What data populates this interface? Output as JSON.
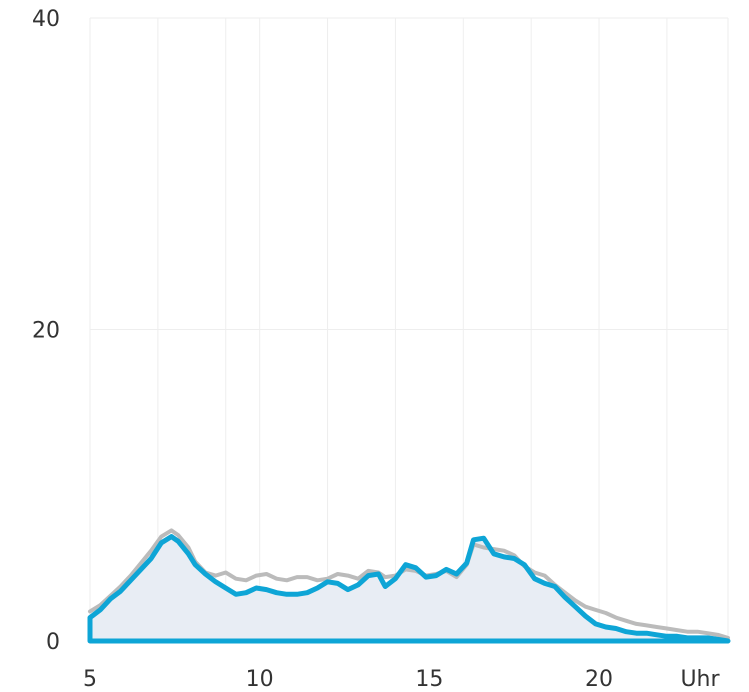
{
  "chart_data": {
    "type": "area",
    "x_unit_label": "Uhr",
    "xlim": [
      5,
      23.8
    ],
    "ylim": [
      0,
      40
    ],
    "x_ticks": [
      5,
      10,
      15,
      20
    ],
    "y_ticks": [
      0,
      20,
      40
    ],
    "grid": true,
    "x_grid": [
      5,
      7,
      9,
      10,
      12,
      14,
      16,
      18,
      20,
      22
    ],
    "series": [
      {
        "color": "#0ea5d6",
        "filled": true,
        "fill_color": "#e8edf4",
        "x": [
          5.0,
          5.3,
          5.6,
          5.9,
          6.2,
          6.5,
          6.8,
          7.1,
          7.4,
          7.6,
          7.9,
          8.1,
          8.4,
          8.7,
          9.0,
          9.3,
          9.6,
          9.9,
          10.2,
          10.5,
          10.8,
          11.1,
          11.4,
          11.7,
          12.0,
          12.3,
          12.6,
          12.9,
          13.2,
          13.5,
          13.7,
          14.0,
          14.3,
          14.6,
          14.9,
          15.2,
          15.5,
          15.8,
          16.1,
          16.3,
          16.6,
          16.9,
          17.2,
          17.5,
          17.8,
          18.1,
          18.4,
          18.7,
          19.0,
          19.3,
          19.6,
          19.9,
          20.2,
          20.5,
          20.8,
          21.1,
          21.4,
          21.7,
          22.0,
          22.3,
          22.6,
          22.9,
          23.2,
          23.5,
          23.8
        ],
        "y": [
          1.5,
          2.0,
          2.7,
          3.2,
          3.9,
          4.6,
          5.3,
          6.3,
          6.7,
          6.4,
          5.6,
          4.9,
          4.3,
          3.8,
          3.4,
          3.0,
          3.1,
          3.4,
          3.3,
          3.1,
          3.0,
          3.0,
          3.1,
          3.4,
          3.8,
          3.7,
          3.3,
          3.6,
          4.2,
          4.3,
          3.5,
          4.0,
          4.9,
          4.7,
          4.1,
          4.2,
          4.6,
          4.3,
          5.0,
          6.5,
          6.6,
          5.6,
          5.4,
          5.3,
          4.9,
          4.0,
          3.7,
          3.5,
          2.8,
          2.2,
          1.6,
          1.1,
          0.9,
          0.8,
          0.6,
          0.5,
          0.5,
          0.4,
          0.3,
          0.3,
          0.2,
          0.2,
          0.2,
          0.1,
          0.0
        ]
      },
      {
        "color": "#bbbbbb",
        "filled": false,
        "x": [
          5.0,
          5.3,
          5.6,
          5.9,
          6.2,
          6.5,
          6.8,
          7.1,
          7.4,
          7.6,
          7.9,
          8.1,
          8.4,
          8.7,
          9.0,
          9.3,
          9.6,
          9.9,
          10.2,
          10.5,
          10.8,
          11.1,
          11.4,
          11.7,
          12.0,
          12.3,
          12.6,
          12.9,
          13.2,
          13.5,
          13.7,
          14.0,
          14.3,
          14.6,
          14.9,
          15.2,
          15.5,
          15.8,
          16.1,
          16.3,
          16.6,
          16.9,
          17.2,
          17.5,
          17.8,
          18.1,
          18.4,
          18.7,
          19.0,
          19.3,
          19.6,
          19.9,
          20.2,
          20.5,
          20.8,
          21.1,
          21.4,
          21.7,
          22.0,
          22.3,
          22.6,
          22.9,
          23.2,
          23.5,
          23.8
        ],
        "y": [
          1.9,
          2.3,
          2.9,
          3.5,
          4.2,
          5.0,
          5.8,
          6.7,
          7.1,
          6.8,
          6.0,
          5.1,
          4.4,
          4.2,
          4.4,
          4.0,
          3.9,
          4.2,
          4.3,
          4.0,
          3.9,
          4.1,
          4.1,
          3.9,
          4.0,
          4.3,
          4.2,
          4.0,
          4.5,
          4.4,
          4.1,
          4.2,
          4.6,
          4.5,
          4.2,
          4.3,
          4.5,
          4.1,
          4.9,
          6.2,
          6.0,
          5.9,
          5.8,
          5.5,
          4.8,
          4.4,
          4.2,
          3.6,
          3.1,
          2.6,
          2.2,
          2.0,
          1.8,
          1.5,
          1.3,
          1.1,
          1.0,
          0.9,
          0.8,
          0.7,
          0.6,
          0.6,
          0.5,
          0.4,
          0.2
        ]
      }
    ]
  }
}
